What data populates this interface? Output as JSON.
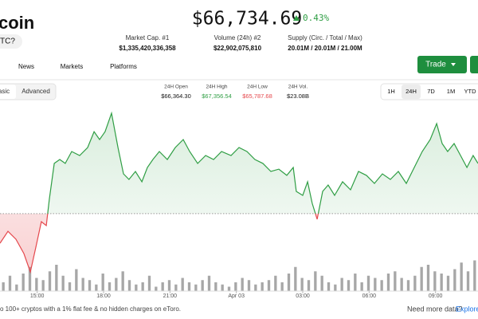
{
  "header": {
    "name": "coin",
    "ticker": "TC?",
    "price": "$66,734.69",
    "change": "0.43%"
  },
  "stats": [
    {
      "label": "Market Cap. #1",
      "value": "$1,335,420,336,358"
    },
    {
      "label": "Volume (24h) #2",
      "value": "$22,902,075,810"
    },
    {
      "label": "Supply (Circ. / Total / Max)",
      "value": "20.01M / 20.01M / 21.00M"
    }
  ],
  "tabs": [
    "News",
    "Markets",
    "Platforms"
  ],
  "trade_button": "Trade",
  "view_toggle": [
    "asic",
    "Advanced"
  ],
  "range_stats": [
    {
      "label": "24H Open",
      "value": "$66,364.30"
    },
    {
      "label": "24H High",
      "value": "$67,356.54"
    },
    {
      "label": "24H Low",
      "value": "$65,787.68"
    },
    {
      "label": "24H Vol.",
      "value": "$23.08B"
    }
  ],
  "ranges": [
    "1H",
    "24H",
    "7D",
    "1M",
    "YTD"
  ],
  "chart": {
    "type": "line",
    "x": [
      13.32,
      13.68,
      14.04,
      14.4,
      14.69,
      14.94,
      15.19,
      15.41,
      15.55,
      15.77,
      16.02,
      16.27,
      16.56,
      16.92,
      17.28,
      17.57,
      17.82,
      18.07,
      18.36,
      18.65,
      18.9,
      19.15,
      19.44,
      19.73,
      19.98,
      20.23,
      20.52,
      20.88,
      21.24,
      21.6,
      21.89,
      22.25,
      22.61,
      22.97,
      23.33,
      23.76,
      24.12,
      24.48,
      24.84,
      25.2,
      25.56,
      25.92,
      26.28,
      26.57,
      26.71,
      27.0,
      27.22,
      27.43,
      27.65,
      27.9,
      28.15,
      28.44,
      28.8,
      29.16,
      29.52,
      29.88,
      30.24,
      30.6,
      30.96,
      31.32,
      31.68,
      32.04,
      32.4,
      32.76,
      33.05,
      33.3,
      33.55,
      33.84,
      34.13,
      34.42,
      34.7,
      34.92
    ],
    "y": [
      66072,
      66190,
      66112,
      65970,
      65788,
      66033,
      66285,
      66246,
      66505,
      66860,
      66899,
      66860,
      66978,
      66938,
      67017,
      67174,
      67096,
      67174,
      67356,
      67017,
      66757,
      66702,
      66781,
      66679,
      66820,
      66899,
      66978,
      66899,
      67017,
      67096,
      66978,
      66860,
      66938,
      66899,
      66978,
      66938,
      67017,
      66978,
      66899,
      66860,
      66781,
      66804,
      66742,
      66820,
      66584,
      66545,
      66679,
      66466,
      66309,
      66584,
      66647,
      66545,
      66679,
      66600,
      66781,
      66742,
      66663,
      66757,
      66702,
      66781,
      66663,
      66820,
      66978,
      67096,
      67253,
      67056,
      66978,
      67056,
      66938,
      66820,
      66938,
      66860
    ],
    "xlim": [
      13.32,
      34.92
    ],
    "ylim": [
      65600,
      67450
    ],
    "xticks": [
      {
        "value": 15,
        "label": "15:00"
      },
      {
        "value": 18,
        "label": "18:00"
      },
      {
        "value": 21,
        "label": "21:00"
      },
      {
        "value": 24,
        "label": "Apr 03"
      },
      {
        "value": 27,
        "label": "03:00"
      },
      {
        "value": 30,
        "label": "06:00"
      },
      {
        "value": 33,
        "label": "09:00"
      }
    ],
    "baseline": 66364.3,
    "up_color": "#2f9e44",
    "down_color": "#e5484d",
    "volume": {
      "values": [
        20,
        35,
        15,
        40,
        55,
        30,
        25,
        45,
        60,
        35,
        20,
        50,
        30,
        25,
        15,
        40,
        20,
        30,
        45,
        25,
        15,
        20,
        35,
        10,
        20,
        25,
        15,
        30,
        20,
        15,
        25,
        35,
        20,
        15,
        10,
        20,
        30,
        25,
        15,
        20,
        25,
        35,
        20,
        40,
        55,
        30,
        25,
        45,
        35,
        20,
        15,
        30,
        25,
        40,
        20,
        35,
        30,
        25,
        40,
        45,
        30,
        25,
        35,
        55,
        60,
        45,
        40,
        35,
        50,
        65,
        45,
        70
      ],
      "ylim": [
        0,
        100
      ],
      "color": "#8a8a8a"
    }
  },
  "footer": {
    "promo": "o 100+ cryptos with a 1% flat fee & no hidden charges on eToro.",
    "more": "Need more data?",
    "link": "Explore"
  }
}
